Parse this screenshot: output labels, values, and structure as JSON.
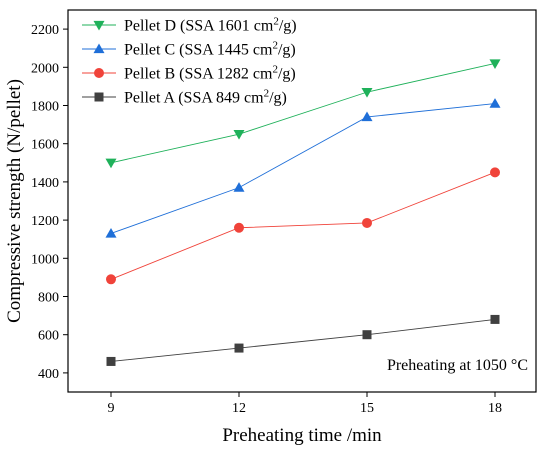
{
  "chart_data": {
    "type": "line",
    "xlabel": "Preheating time /min",
    "ylabel": "Compressive strength (N/pellet)",
    "x": [
      9,
      12,
      15,
      18
    ],
    "xticks": [
      "9",
      "12",
      "15",
      "18"
    ],
    "ylim": [
      300,
      2300
    ],
    "yticks": [
      "400",
      "600",
      "800",
      "1000",
      "1200",
      "1400",
      "1600",
      "1800",
      "2000",
      "2200"
    ],
    "grid": false,
    "legend_position": "top-left",
    "annotation": "Preheating at 1050 °C",
    "series": [
      {
        "name": "Pellet D (SSA 1601 cm²/g)",
        "label_main": "Pellet D (SSA 1601 cm",
        "label_sup": "2",
        "label_end": "/g)",
        "color": "#1fb15a",
        "marker": "triangle-down",
        "values": [
          1500,
          1650,
          1870,
          2020
        ]
      },
      {
        "name": "Pellet C (SSA 1445 cm²/g)",
        "label_main": "Pellet C (SSA 1445 cm",
        "label_sup": "2",
        "label_end": "/g)",
        "color": "#1f6fd8",
        "marker": "triangle-up",
        "values": [
          1130,
          1370,
          1740,
          1810
        ]
      },
      {
        "name": "Pellet B (SSA 1282 cm²/g)",
        "label_main": "Pellet B (SSA 1282 cm",
        "label_sup": "2",
        "label_end": "/g)",
        "color": "#f0433a",
        "marker": "circle",
        "values": [
          890,
          1160,
          1185,
          1450
        ]
      },
      {
        "name": "Pellet A (SSA 849 cm²/g)",
        "label_main": "Pellet A (SSA 849 cm",
        "label_sup": "2",
        "label_end": "/g)",
        "color": "#404040",
        "marker": "square",
        "values": [
          460,
          530,
          600,
          680
        ]
      }
    ]
  }
}
